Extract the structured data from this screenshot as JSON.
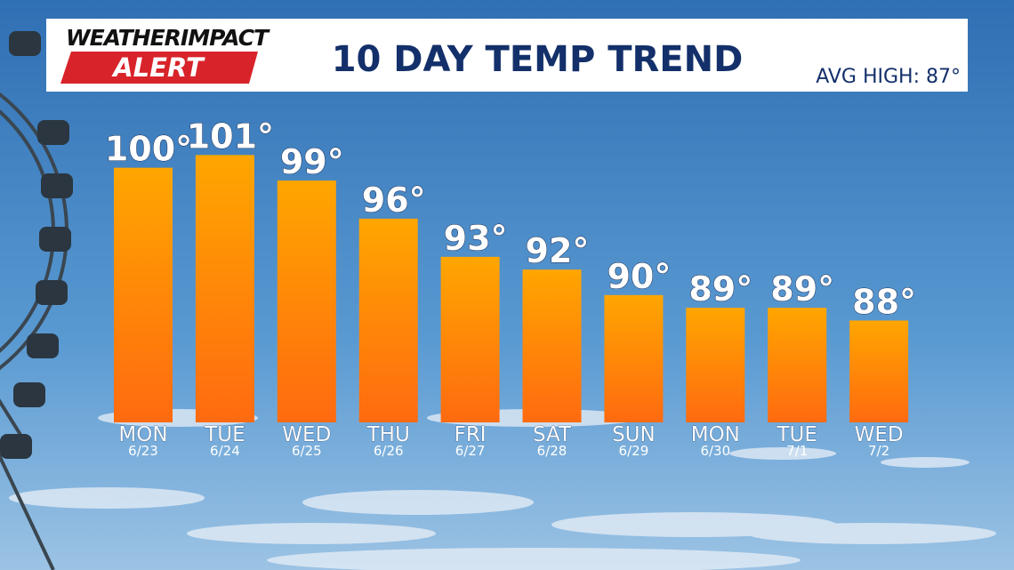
{
  "chart_data": {
    "type": "bar",
    "logo": {
      "line1a": "WEATHER",
      "line1b": "IMPACT",
      "line2": "ALERT"
    },
    "title": "10 DAY TEMP TREND",
    "annotation": "AVG HIGH: 87°",
    "categories": [
      "MON",
      "TUE",
      "WED",
      "THU",
      "FRI",
      "SAT",
      "SUN",
      "MON",
      "TUE",
      "WED"
    ],
    "dates": [
      "6/23",
      "6/24",
      "6/25",
      "6/26",
      "6/27",
      "6/28",
      "6/29",
      "6/30",
      "7/1",
      "7/2"
    ],
    "values": [
      100,
      101,
      99,
      96,
      93,
      92,
      90,
      89,
      89,
      88
    ],
    "value_labels": [
      "100°",
      "101°",
      "99°",
      "96°",
      "93°",
      "92°",
      "90°",
      "89°",
      "89°",
      "88°"
    ],
    "color": "#ff8c00",
    "ylim": [
      80,
      102
    ]
  }
}
